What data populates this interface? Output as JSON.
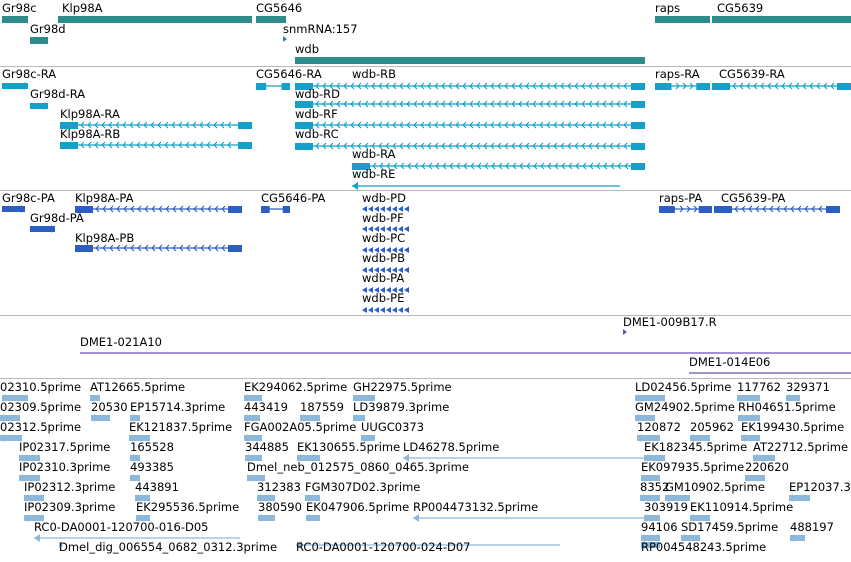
{
  "colors": {
    "gene": "#2e8b8b",
    "transcript": "#14a0c8",
    "protein": "#2c5fc4",
    "clone": "#6a4fb0",
    "est": "#8cb8dc",
    "separator": "#b8b8b8"
  },
  "tracks": [
    {
      "name": "gene",
      "features": [
        {
          "label": "Gr98c"
        },
        {
          "label": "Gr98d"
        },
        {
          "label": "Klp98A"
        },
        {
          "label": "CG5646"
        },
        {
          "label": "snmRNA:157"
        },
        {
          "label": "wdb"
        },
        {
          "label": "raps"
        },
        {
          "label": "CG5639"
        }
      ]
    },
    {
      "name": "transcript",
      "features": [
        {
          "label": "Gr98c-RA"
        },
        {
          "label": "Gr98d-RA"
        },
        {
          "label": "Klp98A-RA"
        },
        {
          "label": "Klp98A-RB"
        },
        {
          "label": "CG5646-RA"
        },
        {
          "label": "wdb-RB"
        },
        {
          "label": "wdb-RD"
        },
        {
          "label": "wdb-RF"
        },
        {
          "label": "wdb-RC"
        },
        {
          "label": "wdb-RA"
        },
        {
          "label": "wdb-RE"
        },
        {
          "label": "raps-RA"
        },
        {
          "label": "CG5639-RA"
        }
      ]
    },
    {
      "name": "protein",
      "features": [
        {
          "label": "Gr98c-PA"
        },
        {
          "label": "Gr98d-PA"
        },
        {
          "label": "Klp98A-PA"
        },
        {
          "label": "Klp98A-PB"
        },
        {
          "label": "CG5646-PA"
        },
        {
          "label": "wdb-PD"
        },
        {
          "label": "wdb-PF"
        },
        {
          "label": "wdb-PC"
        },
        {
          "label": "wdb-PB"
        },
        {
          "label": "wdb-PA"
        },
        {
          "label": "wdb-PE"
        },
        {
          "label": "raps-PA"
        },
        {
          "label": "CG5639-PA"
        }
      ]
    },
    {
      "name": "clone",
      "features": [
        {
          "label": "DME1-009B17.R"
        },
        {
          "label": "DME1-021A10"
        },
        {
          "label": "DME1-014E06"
        }
      ]
    },
    {
      "name": "est",
      "features": [
        {
          "label": "02310.5prime"
        },
        {
          "label": "AT12665.5prime"
        },
        {
          "label": "EK294062.5prime"
        },
        {
          "label": "GH22975.5prime"
        },
        {
          "label": "LD02456.5prime"
        },
        {
          "label": "117762"
        },
        {
          "label": "329371"
        },
        {
          "label": "02309.5prime"
        },
        {
          "label": "20530"
        },
        {
          "label": "EP15714.3prime"
        },
        {
          "label": "443419"
        },
        {
          "label": "187559"
        },
        {
          "label": "LD39879.3prime"
        },
        {
          "label": "GM24902.5prime"
        },
        {
          "label": "RH04651.5prime"
        },
        {
          "label": "02312.5prime"
        },
        {
          "label": "EK121837.5prime"
        },
        {
          "label": "FGA002A05.5prime"
        },
        {
          "label": "UUGC0373"
        },
        {
          "label": "120872"
        },
        {
          "label": "205962"
        },
        {
          "label": "EK199430.5prime"
        },
        {
          "label": "IP02317.5prime"
        },
        {
          "label": "165528"
        },
        {
          "label": "344885"
        },
        {
          "label": "EK130655.5prime"
        },
        {
          "label": "LD46278.5prime"
        },
        {
          "label": "EK182345.5prime"
        },
        {
          "label": "AT22712.5prime"
        },
        {
          "label": "IP02310.3prime"
        },
        {
          "label": "493385"
        },
        {
          "label": "Dmel_neb_012575_0860_0465.3prime"
        },
        {
          "label": "EK097935.5prime"
        },
        {
          "label": "220620"
        },
        {
          "label": "IP02312.3prime"
        },
        {
          "label": "443891"
        },
        {
          "label": "312383"
        },
        {
          "label": "FGM307D02.3prime"
        },
        {
          "label": "8352"
        },
        {
          "label": "GM10902.5prime"
        },
        {
          "label": "EP12037.3"
        },
        {
          "label": "IP02309.3prime"
        },
        {
          "label": "EK295536.5prime"
        },
        {
          "label": "380590"
        },
        {
          "label": "EK047906.5prime"
        },
        {
          "label": "RP004473132.5prime"
        },
        {
          "label": "303919"
        },
        {
          "label": "EK110914.5prime"
        },
        {
          "label": "RC0-DA0001-120700-016-D05"
        },
        {
          "label": "94106"
        },
        {
          "label": "SD17459.5prime"
        },
        {
          "label": "488197"
        },
        {
          "label": "Dmel_dig_006554_0682_0312.3prime"
        },
        {
          "label": "RC0-DA0001-120700-024-D07"
        },
        {
          "label": "RP004548243.5prime"
        }
      ]
    }
  ]
}
